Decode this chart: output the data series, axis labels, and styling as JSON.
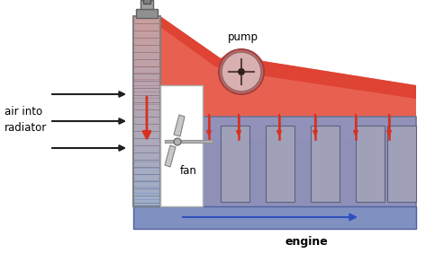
{
  "bg_color": "#ffffff",
  "radiator_color": "#c0c0c0",
  "radiator_fin_color": "#a0a0a0",
  "hot_color": "#d83020",
  "hot_color2": "#e86050",
  "cool_color": "#8090c0",
  "engine_color": "#9090b8",
  "engine_fin_color": "#a0a0b8",
  "pump_color": "#d8b0b0",
  "text_pump": "pump",
  "text_fan": "fan",
  "text_engine": "engine",
  "text_air": "air into\nradiator"
}
